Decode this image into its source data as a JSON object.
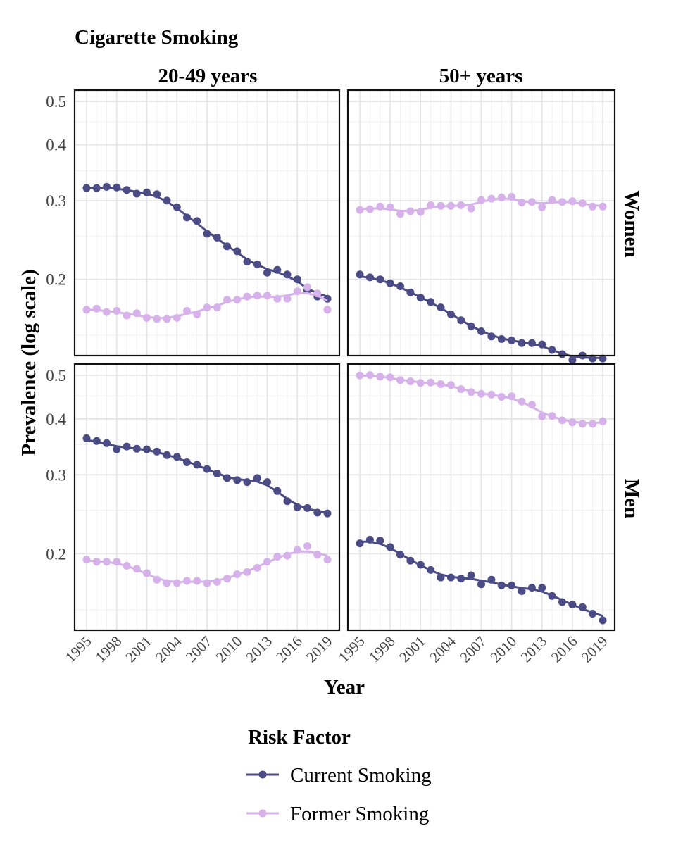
{
  "chart_data": {
    "type": "line",
    "title": "Cigarette Smoking",
    "xlabel": "Year",
    "ylabel": "Prevalence (log scale)",
    "y_scale": "log",
    "ylim": [
      0.135,
      0.53
    ],
    "y_ticks": [
      0.2,
      0.3,
      0.4,
      0.5
    ],
    "y_tick_labels": [
      "0.2",
      "0.3",
      "0.4",
      "0.5"
    ],
    "x_ticks": [
      1995,
      1998,
      2001,
      2004,
      2007,
      2010,
      2013,
      2016,
      2019
    ],
    "x_tick_labels": [
      "1995",
      "1998",
      "2001",
      "2004",
      "2007",
      "2010",
      "2013",
      "2016",
      "2019"
    ],
    "grid": true,
    "column_labels": [
      "20-49 years",
      "50+ years"
    ],
    "row_labels": [
      "Women",
      "Men"
    ],
    "legend": {
      "title": "Risk Factor",
      "position": "bottom",
      "entries": [
        "Current Smoking",
        "Former Smoking"
      ]
    },
    "series_colors": {
      "Current Smoking": "#4b4c86",
      "Former Smoking": "#d6b1ea"
    },
    "x": [
      1995,
      1996,
      1997,
      1998,
      1999,
      2000,
      2001,
      2002,
      2003,
      2004,
      2005,
      2006,
      2007,
      2008,
      2009,
      2010,
      2011,
      2012,
      2013,
      2014,
      2015,
      2016,
      2017,
      2018,
      2019
    ],
    "panels": [
      {
        "row": "Women",
        "column": "20-49 years",
        "series": [
          {
            "name": "Current Smoking",
            "values": [
              0.32,
              0.32,
              0.322,
              0.321,
              0.317,
              0.311,
              0.313,
              0.31,
              0.3,
              0.29,
              0.275,
              0.27,
              0.253,
              0.248,
              0.237,
              0.231,
              0.219,
              0.216,
              0.207,
              0.21,
              0.205,
              0.2,
              0.189,
              0.183,
              0.181
            ]
          },
          {
            "name": "Former Smoking",
            "values": [
              0.171,
              0.172,
              0.169,
              0.17,
              0.166,
              0.168,
              0.164,
              0.163,
              0.163,
              0.164,
              0.17,
              0.167,
              0.173,
              0.173,
              0.18,
              0.18,
              0.183,
              0.184,
              0.184,
              0.181,
              0.181,
              0.188,
              0.192,
              0.186,
              0.171
            ]
          }
        ]
      },
      {
        "row": "Women",
        "column": "50+ years",
        "series": [
          {
            "name": "Current Smoking",
            "values": [
              0.205,
              0.202,
              0.2,
              0.196,
              0.193,
              0.187,
              0.182,
              0.178,
              0.173,
              0.167,
              0.162,
              0.157,
              0.153,
              0.149,
              0.147,
              0.146,
              0.144,
              0.144,
              0.143,
              0.139,
              0.136,
              0.132,
              0.135,
              0.133,
              0.133
            ]
          },
          {
            "name": "Former Smoking",
            "values": [
              0.286,
              0.287,
              0.291,
              0.29,
              0.28,
              0.284,
              0.283,
              0.293,
              0.292,
              0.292,
              0.293,
              0.288,
              0.301,
              0.303,
              0.305,
              0.306,
              0.297,
              0.298,
              0.29,
              0.301,
              0.298,
              0.299,
              0.296,
              0.291,
              0.291
            ]
          }
        ]
      },
      {
        "row": "Men",
        "column": "20-49 years",
        "series": [
          {
            "name": "Current Smoking",
            "values": [
              0.362,
              0.357,
              0.353,
              0.342,
              0.347,
              0.343,
              0.342,
              0.338,
              0.332,
              0.329,
              0.32,
              0.316,
              0.309,
              0.302,
              0.295,
              0.292,
              0.289,
              0.295,
              0.289,
              0.276,
              0.262,
              0.254,
              0.253,
              0.247,
              0.246
            ]
          },
          {
            "name": "Former Smoking",
            "values": [
              0.194,
              0.192,
              0.192,
              0.192,
              0.188,
              0.185,
              0.181,
              0.175,
              0.172,
              0.172,
              0.174,
              0.174,
              0.172,
              0.173,
              0.176,
              0.18,
              0.182,
              0.186,
              0.192,
              0.197,
              0.198,
              0.204,
              0.208,
              0.199,
              0.194
            ]
          }
        ]
      },
      {
        "row": "Men",
        "column": "50+ years",
        "series": [
          {
            "name": "Current Smoking",
            "values": [
              0.211,
              0.215,
              0.214,
              0.207,
              0.199,
              0.193,
              0.189,
              0.184,
              0.177,
              0.177,
              0.176,
              0.179,
              0.171,
              0.175,
              0.17,
              0.17,
              0.165,
              0.168,
              0.168,
              0.161,
              0.156,
              0.154,
              0.152,
              0.147,
              0.142
            ]
          },
          {
            "name": "Former Smoking",
            "values": [
              0.5,
              0.501,
              0.497,
              0.495,
              0.488,
              0.485,
              0.481,
              0.482,
              0.478,
              0.476,
              0.466,
              0.459,
              0.455,
              0.453,
              0.448,
              0.449,
              0.437,
              0.43,
              0.405,
              0.406,
              0.397,
              0.393,
              0.39,
              0.39,
              0.395
            ]
          }
        ]
      }
    ]
  }
}
